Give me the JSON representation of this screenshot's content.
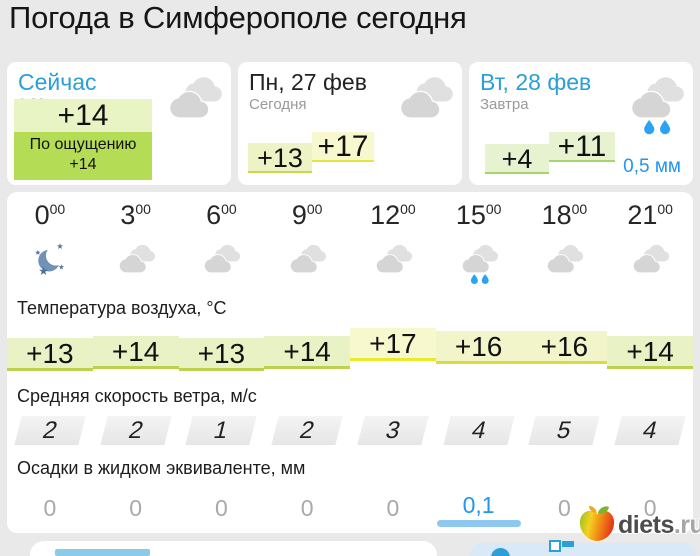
{
  "page": {
    "title": "Погода в Симферополе сегодня"
  },
  "cards": {
    "now": {
      "title": "Сейчас",
      "time": "6:38",
      "temperature": "+14",
      "feels_label": "По ощущению",
      "feels_value": "+14",
      "icon": "cloud"
    },
    "today": {
      "title": "Пн, 27 фев",
      "subtitle": "Сегодня",
      "temp_min": "+13",
      "temp_max": "+17",
      "icon": "cloud"
    },
    "tomorrow": {
      "title": "Вт, 28 фев",
      "subtitle": "Завтра",
      "temp_min": "+4",
      "temp_max": "+11",
      "precipitation": "0,5 мм",
      "icon": "cloud-rain"
    }
  },
  "forecast": {
    "hours": [
      {
        "h": "0",
        "m": "00"
      },
      {
        "h": "3",
        "m": "00"
      },
      {
        "h": "6",
        "m": "00"
      },
      {
        "h": "9",
        "m": "00"
      },
      {
        "h": "12",
        "m": "00"
      },
      {
        "h": "15",
        "m": "00"
      },
      {
        "h": "18",
        "m": "00"
      },
      {
        "h": "21",
        "m": "00"
      }
    ],
    "icons": [
      "moon",
      "cloud",
      "cloud",
      "cloud",
      "cloud",
      "cloud-rain",
      "cloud",
      "cloud"
    ],
    "temperature": {
      "label": "Температура воздуха, °C",
      "values": [
        "+13",
        "+14",
        "+13",
        "+14",
        "+17",
        "+16",
        "+16",
        "+14"
      ]
    },
    "wind": {
      "label": "Средняя скорость ветра, м/с",
      "values": [
        "2",
        "2",
        "1",
        "2",
        "3",
        "4",
        "5",
        "4"
      ]
    },
    "precipitation": {
      "label": "Осадки в жидком эквиваленте, мм",
      "values": [
        "0",
        "0",
        "0",
        "0",
        "0",
        "0,1",
        "0",
        "0"
      ],
      "highlight_index": 5
    }
  },
  "watermark": {
    "brand": "diets",
    "suffix": ".ru"
  },
  "colors": {
    "accent_blue": "#2b9fd6",
    "rain_blue": "#2196f3",
    "feels_green": "#b4dc55",
    "temp_green": "#e8f2c4",
    "temp_yellow": "#f8f8cf",
    "page_bg": "#e9e9e9"
  }
}
